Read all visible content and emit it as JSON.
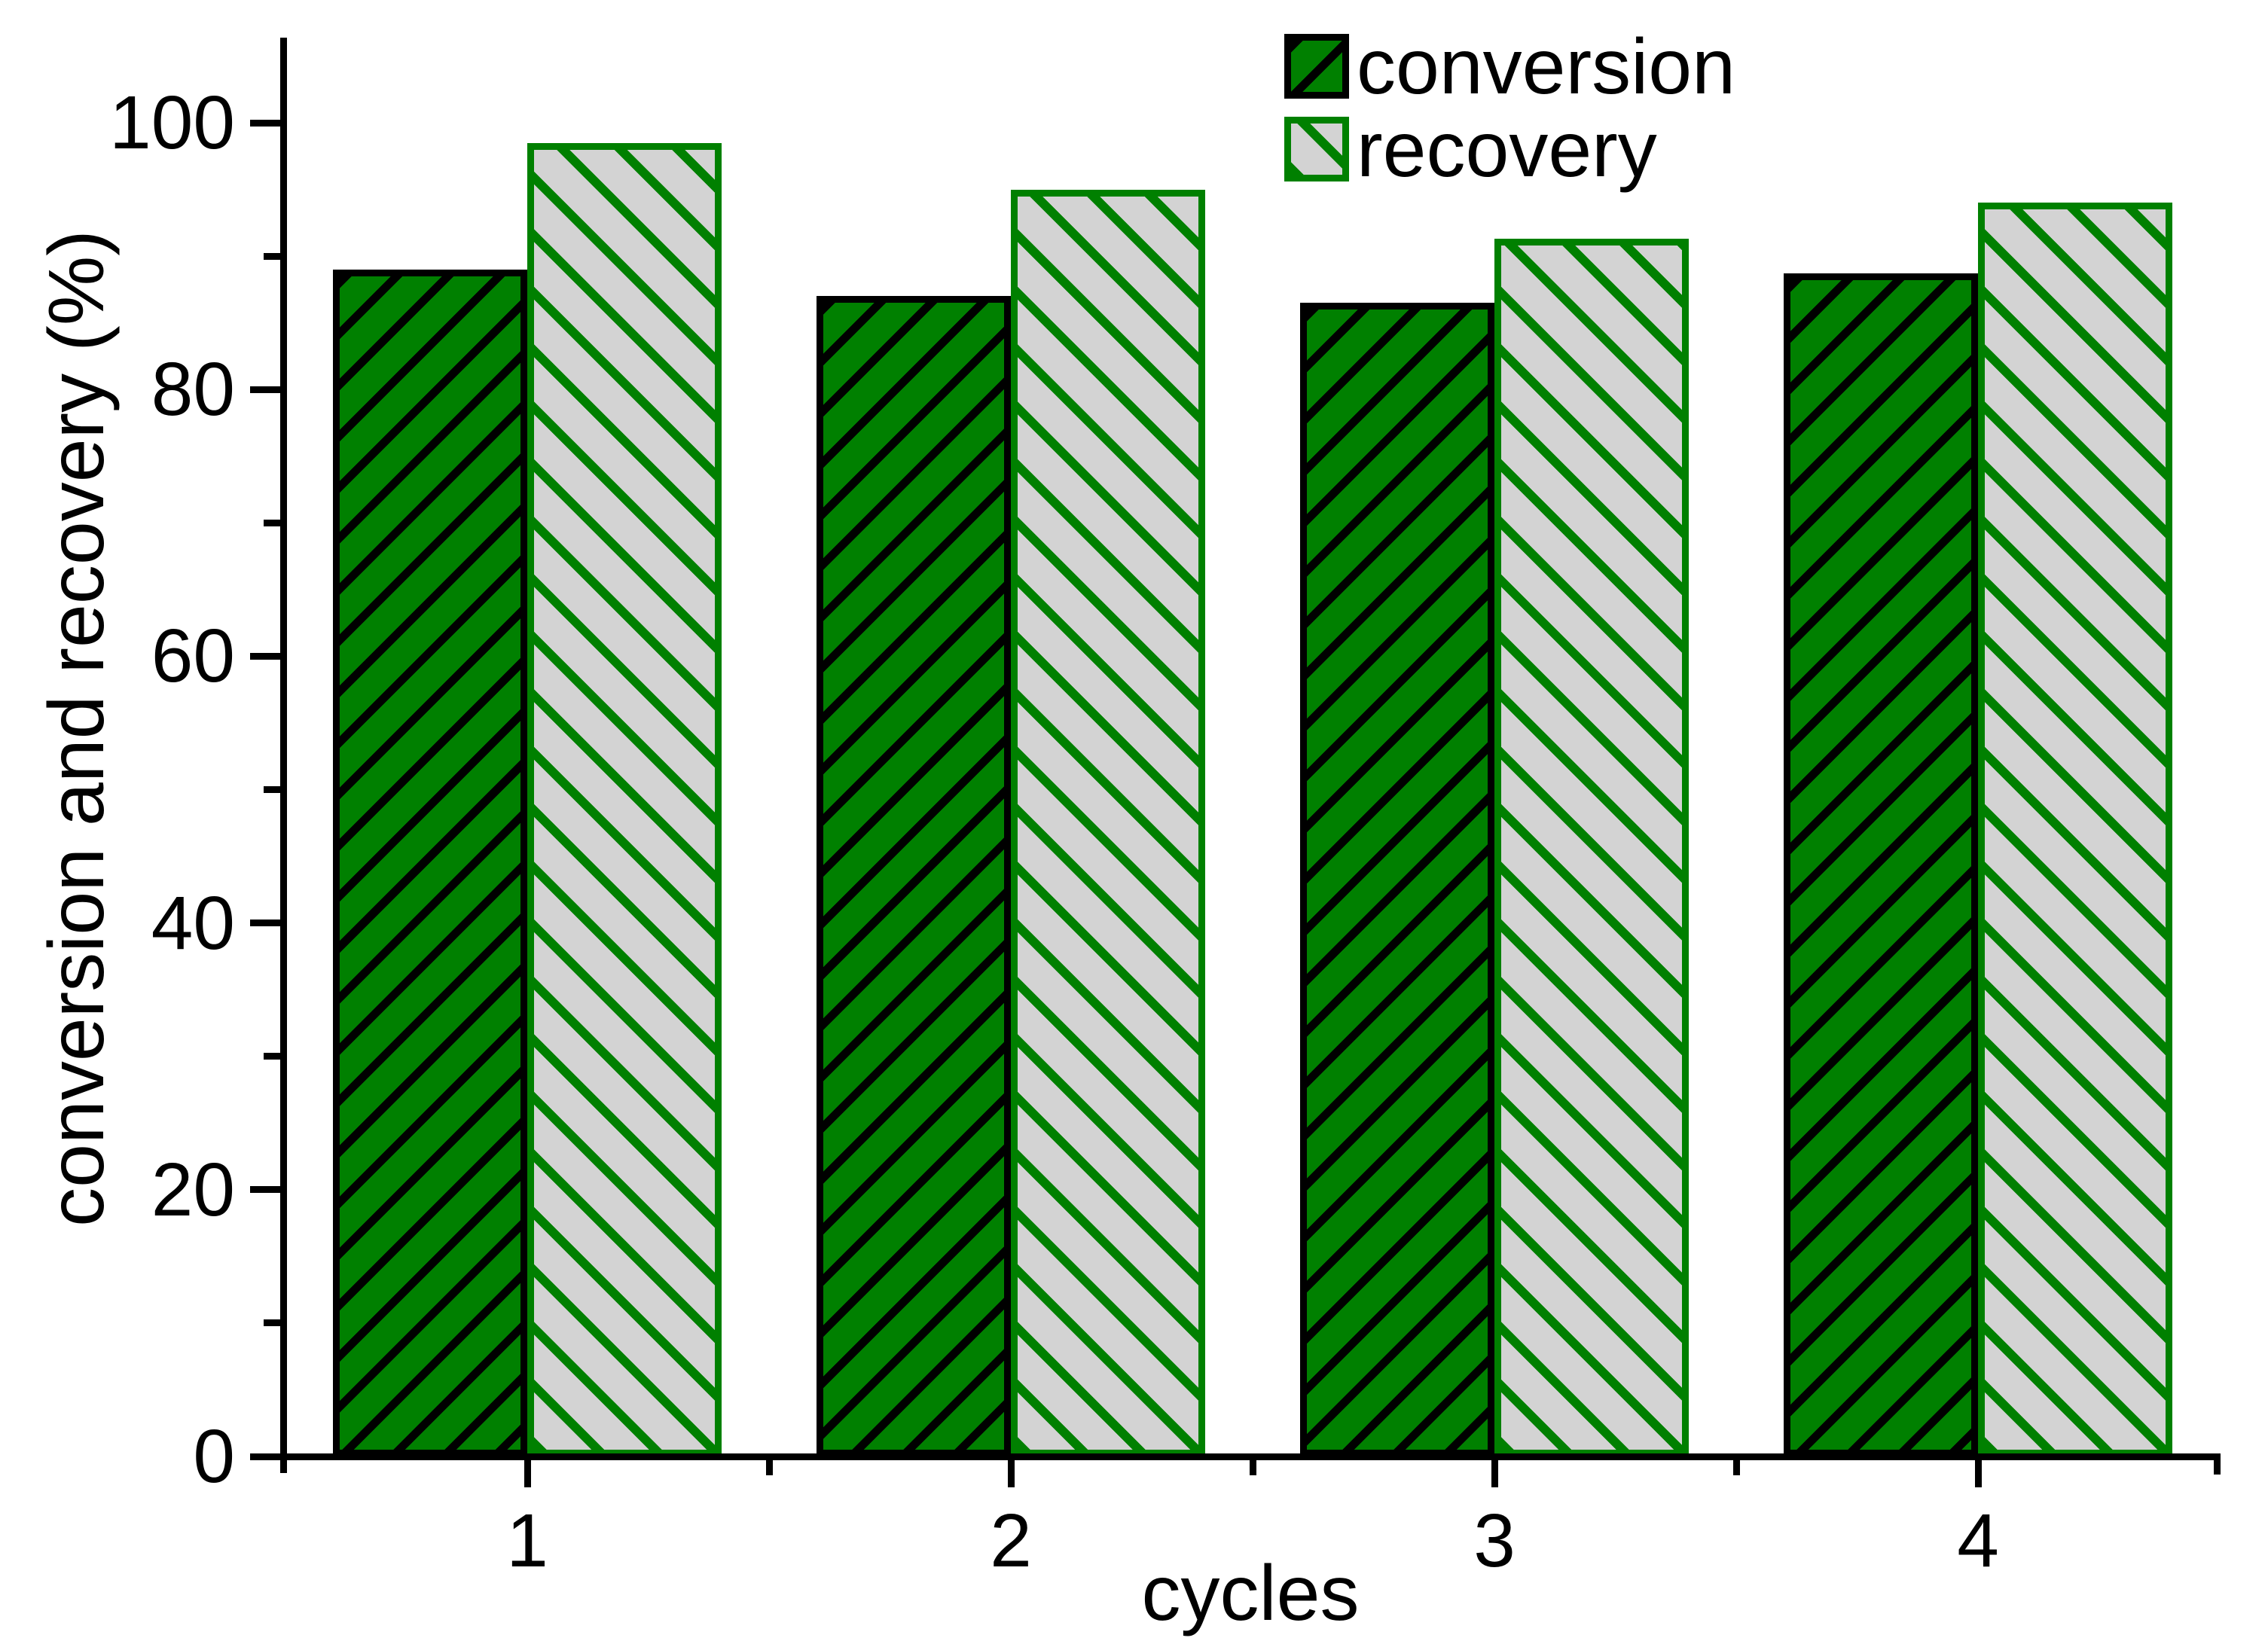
{
  "chart_data": {
    "type": "bar",
    "categories": [
      "1",
      "2",
      "3",
      "4"
    ],
    "series": [
      {
        "name": "conversion",
        "values": [
          89.0,
          87.0,
          86.5,
          88.7
        ],
        "fill": "#008000",
        "border": "#000000",
        "hatch": "forward-diagonal-black"
      },
      {
        "name": "recovery",
        "values": [
          98.5,
          95.0,
          91.3,
          94.0
        ],
        "fill": "#d3d3d3",
        "border": "#008000",
        "hatch": "backward-diagonal-green"
      }
    ],
    "title": "",
    "xlabel": "cycles",
    "ylabel": "conversion and recovery (%)",
    "ylim": [
      0,
      106
    ],
    "yticks": [
      0,
      20,
      40,
      60,
      80,
      100
    ],
    "y_minor_ticks": [
      10,
      30,
      50,
      70,
      90
    ],
    "grid": false,
    "legend_position": "top-right",
    "colors": {
      "green": "#008000",
      "gray": "#d3d3d3",
      "black": "#000000"
    }
  },
  "legend": {
    "items": [
      {
        "label": "conversion"
      },
      {
        "label": "recovery"
      }
    ]
  }
}
